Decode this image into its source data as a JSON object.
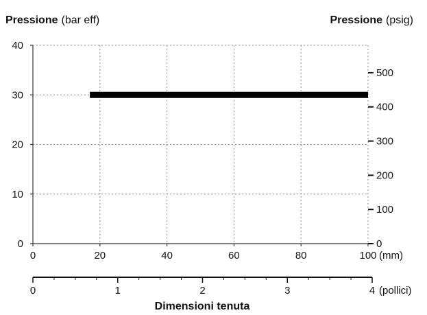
{
  "chart_data": {
    "type": "line",
    "left_axis": {
      "label_bold": "Pressione",
      "label_unit": "(bar eff)",
      "ylim": [
        0,
        40
      ],
      "ticks": [
        0,
        10,
        20,
        30,
        40
      ]
    },
    "right_axis": {
      "label_bold": "Pressione",
      "label_unit": "(psig)",
      "ticks": [
        0,
        100,
        200,
        300,
        400,
        500
      ],
      "tick_labels": [
        "0",
        "100",
        "200",
        "300",
        "400",
        "500"
      ]
    },
    "x_axis_mm": {
      "xlim": [
        0,
        100
      ],
      "ticks": [
        0,
        20,
        40,
        60,
        80,
        100
      ],
      "tick_labels": [
        "0",
        "20",
        "40",
        "60",
        "80",
        "100"
      ],
      "unit": "(mm)"
    },
    "x_axis_inch": {
      "xlim": [
        0,
        4
      ],
      "ticks": [
        0,
        1,
        2,
        3,
        4
      ],
      "tick_labels": [
        "0",
        "1",
        "2",
        "3",
        "4"
      ],
      "unit": "(pollici)"
    },
    "xlabel": "Dimensioni tenuta",
    "grid": true,
    "series": [
      {
        "x": [
          17,
          100
        ],
        "y": [
          30,
          30
        ],
        "color": "#000000"
      }
    ]
  }
}
